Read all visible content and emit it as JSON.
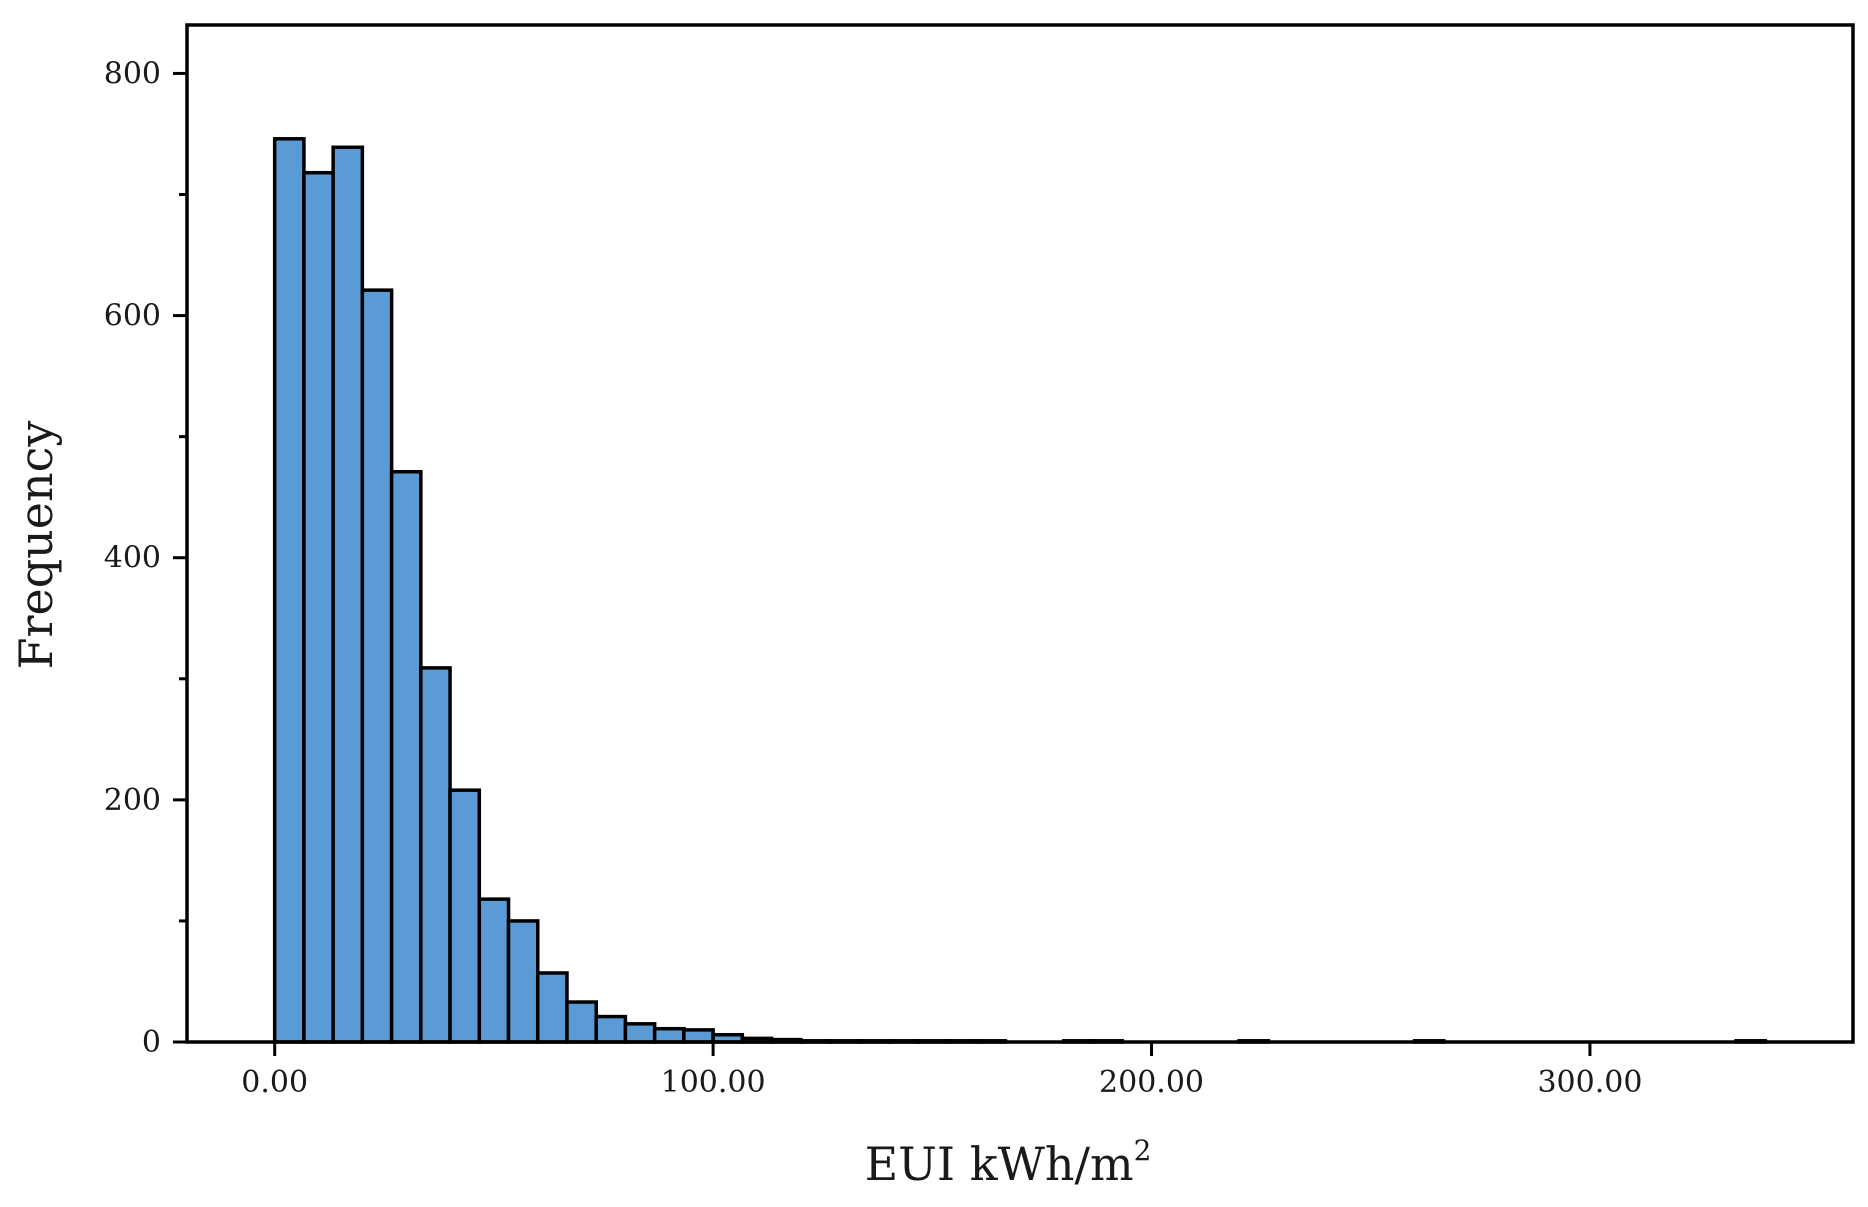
{
  "chart_data": {
    "type": "bar",
    "title": "",
    "xlabel": "EUI kWh/m",
    "xlabel_superscript": "2",
    "ylabel": "Frequency",
    "xlim": [
      -20,
      360
    ],
    "ylim": [
      0,
      840
    ],
    "x_ticks": [
      {
        "value": 0,
        "label": "0.00"
      },
      {
        "value": 100,
        "label": "100.00"
      },
      {
        "value": 200,
        "label": "200.00"
      },
      {
        "value": 300,
        "label": "300.00"
      }
    ],
    "y_ticks": [
      {
        "value": 0,
        "label": "0"
      },
      {
        "value": 200,
        "label": "200"
      },
      {
        "value": 400,
        "label": "400"
      },
      {
        "value": 600,
        "label": "600"
      },
      {
        "value": 800,
        "label": "800"
      }
    ],
    "y_minor_ticks": [
      100,
      300,
      500,
      700
    ],
    "grid": false,
    "bin_width": 6.67,
    "bins": [
      {
        "x0": 0.0,
        "value": 746
      },
      {
        "x0": 6.67,
        "value": 718
      },
      {
        "x0": 13.33,
        "value": 739
      },
      {
        "x0": 20.0,
        "value": 621
      },
      {
        "x0": 26.67,
        "value": 471
      },
      {
        "x0": 33.33,
        "value": 309
      },
      {
        "x0": 40.0,
        "value": 208
      },
      {
        "x0": 46.67,
        "value": 118
      },
      {
        "x0": 53.33,
        "value": 100
      },
      {
        "x0": 60.0,
        "value": 57
      },
      {
        "x0": 66.67,
        "value": 33
      },
      {
        "x0": 73.33,
        "value": 21
      },
      {
        "x0": 80.0,
        "value": 15
      },
      {
        "x0": 86.67,
        "value": 11
      },
      {
        "x0": 93.33,
        "value": 10
      },
      {
        "x0": 100.0,
        "value": 6
      },
      {
        "x0": 106.67,
        "value": 3
      },
      {
        "x0": 113.33,
        "value": 2
      },
      {
        "x0": 120.0,
        "value": 1
      },
      {
        "x0": 126.67,
        "value": 1
      },
      {
        "x0": 133.33,
        "value": 1
      },
      {
        "x0": 140.0,
        "value": 1
      },
      {
        "x0": 146.67,
        "value": 1
      },
      {
        "x0": 153.33,
        "value": 1
      },
      {
        "x0": 160.0,
        "value": 1
      },
      {
        "x0": 180.0,
        "value": 1
      },
      {
        "x0": 186.67,
        "value": 1
      },
      {
        "x0": 220.0,
        "value": 1
      },
      {
        "x0": 260.0,
        "value": 1
      },
      {
        "x0": 333.33,
        "value": 1
      }
    ],
    "colors": {
      "bar_fill": "#5b9bd5",
      "bar_edge": "#000000"
    }
  }
}
